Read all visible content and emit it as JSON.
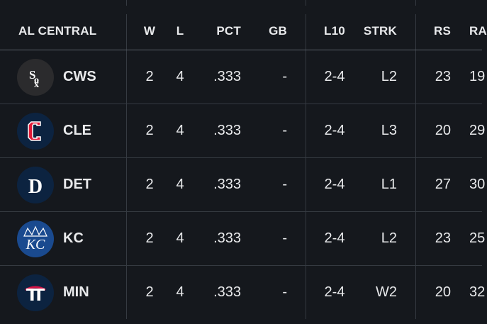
{
  "header": {
    "division": "AL CENTRAL",
    "w": "W",
    "l": "L",
    "pct": "PCT",
    "gb": "GB",
    "l10": "L10",
    "strk": "STRK",
    "rs": "RS",
    "ra": "RA"
  },
  "rows": [
    {
      "team": "CWS",
      "logo": "white-sox-logo",
      "w": "2",
      "l": "4",
      "pct": ".333",
      "gb": "-",
      "l10": "2-4",
      "strk": "L2",
      "rs": "23",
      "ra": "19"
    },
    {
      "team": "CLE",
      "logo": "guardians-logo",
      "w": "2",
      "l": "4",
      "pct": ".333",
      "gb": "-",
      "l10": "2-4",
      "strk": "L3",
      "rs": "20",
      "ra": "29"
    },
    {
      "team": "DET",
      "logo": "tigers-logo",
      "w": "2",
      "l": "4",
      "pct": ".333",
      "gb": "-",
      "l10": "2-4",
      "strk": "L1",
      "rs": "27",
      "ra": "30"
    },
    {
      "team": "KC",
      "logo": "royals-logo",
      "w": "2",
      "l": "4",
      "pct": ".333",
      "gb": "-",
      "l10": "2-4",
      "strk": "L2",
      "rs": "23",
      "ra": "25"
    },
    {
      "team": "MIN",
      "logo": "twins-logo",
      "w": "2",
      "l": "4",
      "pct": ".333",
      "gb": "-",
      "l10": "2-4",
      "strk": "W2",
      "rs": "20",
      "ra": "32"
    }
  ],
  "colors": {
    "background": "#15181d",
    "divider": "#353a41",
    "text": "#e9eaec"
  }
}
